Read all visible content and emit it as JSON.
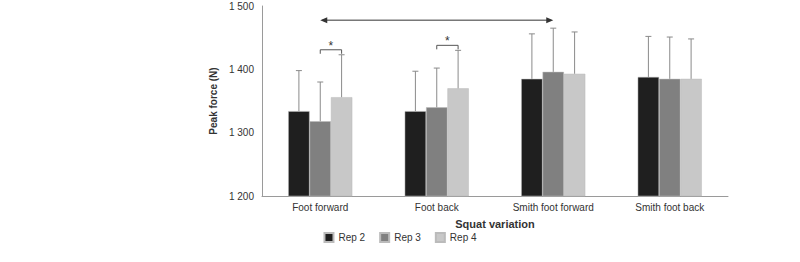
{
  "chart_data": {
    "type": "bar",
    "x_label": "Squat variation",
    "y_label": "Peak force (N)",
    "categories": [
      "Foot forward",
      "Foot back",
      "Smith foot forward",
      "Smith foot back"
    ],
    "series": [
      {
        "name": "Rep 2",
        "color": "#1f1f1f",
        "values": [
          1334,
          1334,
          1385,
          1388
        ],
        "errors": [
          64,
          63,
          71,
          64
        ]
      },
      {
        "name": "Rep 3",
        "color": "#808080",
        "values": [
          1318,
          1340,
          1396,
          1385
        ],
        "errors": [
          62,
          62,
          69,
          66
        ]
      },
      {
        "name": "Rep 4",
        "color": "#c8c8c8",
        "values": [
          1356,
          1370,
          1393,
          1385
        ],
        "errors": [
          67,
          60,
          66,
          63
        ]
      }
    ],
    "ylim": [
      1200,
      1500
    ],
    "yticks": [
      {
        "value": 1200,
        "label": "1 200"
      },
      {
        "value": 1300,
        "label": "1 300"
      },
      {
        "value": 1400,
        "label": "1 400"
      },
      {
        "value": 1500,
        "label": "1 500"
      }
    ],
    "grid": false,
    "legend": "bottom",
    "annotations": [
      {
        "text": "*",
        "category": "Foot forward",
        "between": [
          "Rep 3",
          "Rep 4"
        ]
      },
      {
        "text": "*",
        "category": "Foot back",
        "between": [
          "Rep 3",
          "Rep 4"
        ]
      }
    ],
    "comparisons": [
      {
        "from": "Foot forward",
        "to": "Smith foot forward"
      }
    ]
  }
}
